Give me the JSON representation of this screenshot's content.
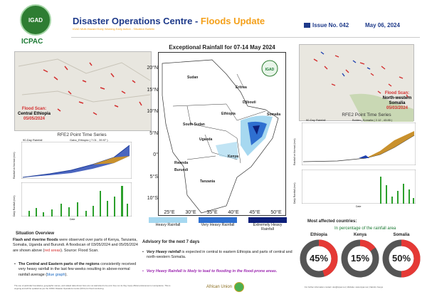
{
  "header": {
    "logo_text": "IGAD",
    "org": "ICPAC",
    "title_main": "Disaster Operations Centre - ",
    "title_highlight": "Floods Update",
    "subtitle": "IGAD Multi-Hazard Early Warning Early Action - Situation Bulletin",
    "issue": "Issue No. 042",
    "date": "May 06, 2024"
  },
  "map": {
    "title": "Exceptional Rainfall for 07-14 May 2024",
    "lat_labels": [
      "20°N",
      "15°N",
      "10°N",
      "5°N",
      "0°",
      "5°S",
      "10°S"
    ],
    "lon_labels": [
      "25°E",
      "30°E",
      "35°E",
      "40°E",
      "45°E",
      "50°E"
    ],
    "countries": [
      "Sudan",
      "Eritrea",
      "Djibouti",
      "Ethiopia",
      "Somalia",
      "South Sudan",
      "Uganda",
      "Kenya",
      "Rwanda",
      "Burundi",
      "Tanzania"
    ],
    "legend": [
      {
        "label": "Heavy Rainfall",
        "color": "#a6d8f0"
      },
      {
        "label": "Very Heavy Rainfall",
        "color": "#2e6fd0"
      },
      {
        "label": "Extremely Heavy Rainfall",
        "color": "#0d1f7a"
      }
    ]
  },
  "flood_scans": {
    "left": {
      "title": "Flood Scan:",
      "place": "Central Ethiopia",
      "date": "05/05/2024"
    },
    "right": {
      "title": "Flood Scan:",
      "place": "North-western Somalia",
      "date": "05/03/2024"
    }
  },
  "timeseries": {
    "title": "RFE2 Point Time Series",
    "left_caption": "Gabo_Ethiopia ( 7.01 , 39.97 )",
    "right_caption": "Boldeo_Somalia ( 2.12 , 43.85 )",
    "series_label": "90-Day Rainfall",
    "y_label_top": "Rainfall vs Normal (mm)",
    "y_label_bottom": "Daily Rainfall (mm)",
    "x_label": "Date"
  },
  "overview": {
    "heading": "Situation Overview",
    "p1_bold": "Flash and riverine floods",
    "p1_rest": " were observed over parts of Kenya, Tanzania, Somalia, Uganda and Burundi. A floodscan of 03/05/2024 and 05/05/2024 are shown above (",
    "p1_red": "red areas",
    "p1_end": "). Source: Flood Scan.",
    "p2_bold": "The Central and Eastern parts of the regions",
    "p2_rest": " consistently received very heavy rainfall in the last few weeks resulting in above-normal rainfall average (",
    "p2_blue": "blue graph",
    "p2_end": ")."
  },
  "advisory": {
    "heading": "Advisory for the next 7 days",
    "b1_bold": "Very Heavy rainfall",
    "b1_rest": " is expected in central to eastern Ethiopia and parts of central and north-western Somalia.",
    "b2": "Very Heavy Rainfall is likely to lead to flooding in the flood-prone areas."
  },
  "affected": {
    "heading": "Most affected countries:",
    "sub": "In percentage of the rainfall area",
    "countries": [
      {
        "name": "Ethiopia",
        "pct": "45%",
        "value": 45
      },
      {
        "name": "Kenya",
        "pct": "15%",
        "value": 15
      },
      {
        "name": "Somalia",
        "pct": "50%",
        "value": 50
      }
    ]
  },
  "footer": {
    "left": "The use of particular boundaries, geographic names, and related data shown here are not warranted to be error free nor do they imply official endorsement or acceptance. This is ongoing and will be updated as per the ICPAC Disaster Operations Centre (DOC) for flood monitoring.",
    "au": "African Union",
    "right": "For further information contact: doc@icpac.net | Website: www.icpac.net | Nairobi, Kenya"
  },
  "colors": {
    "brand_blue": "#1e3a8a",
    "accent_orange": "#f4a01a",
    "alert_red": "#d32f2f",
    "icpac_green": "#1b7a33"
  }
}
